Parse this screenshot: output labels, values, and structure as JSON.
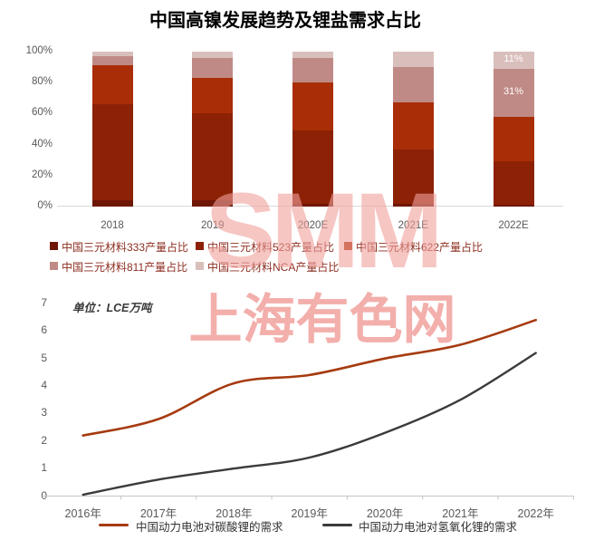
{
  "watermark": {
    "line1": "SMM",
    "line2": "上海有色网",
    "color": "#F4AAA6"
  },
  "chart_data": [
    {
      "type": "bar",
      "stacked": true,
      "title": "中国高镍发展趋势及锂盐需求占比",
      "categories": [
        "2018",
        "2019",
        "2020E",
        "2021E",
        "2022E"
      ],
      "series": [
        {
          "name": "中国三元材料333产量占比",
          "color": "#6F1706",
          "values": [
            4,
            4,
            2,
            2,
            1
          ]
        },
        {
          "name": "中国三元材料523产量占比",
          "color": "#8C2106",
          "values": [
            62,
            56,
            47,
            35,
            28
          ]
        },
        {
          "name": "中国三元材料622产量占比",
          "color": "#A92D07",
          "values": [
            25,
            23,
            31,
            30,
            29
          ]
        },
        {
          "name": "中国三元材料811产量占比",
          "color": "#BF8A85",
          "values": [
            6,
            13,
            16,
            23,
            31
          ]
        },
        {
          "name": "中国三元材料NCA产量占比",
          "color": "#D9BFBC",
          "values": [
            3,
            4,
            4,
            10,
            11
          ]
        }
      ],
      "data_labels": [
        {
          "category": "2022E",
          "series": "中国三元材料811产量占比",
          "text": "31%"
        },
        {
          "category": "2022E",
          "series": "中国三元材料NCA产量占比",
          "text": "11%"
        }
      ],
      "ylim": [
        0,
        100
      ],
      "yticks": [
        "0%",
        "20%",
        "40%",
        "60%",
        "80%",
        "100%"
      ],
      "grid": false,
      "legend_position": "bottom"
    },
    {
      "type": "line",
      "unit_note": "单位：LCE万吨",
      "x": [
        "2016年",
        "2017年",
        "2018年",
        "2019年",
        "2020年",
        "2021年",
        "2022年"
      ],
      "series": [
        {
          "name": "中国动力电池对碳酸锂的需求",
          "color": "#A63B10",
          "values": [
            2.2,
            2.8,
            4.1,
            4.4,
            5.0,
            5.5,
            6.4
          ]
        },
        {
          "name": "中国动力电池对氢氧化锂的需求",
          "color": "#3B3B3B",
          "values": [
            0.05,
            0.6,
            1.0,
            1.4,
            2.3,
            3.5,
            5.2
          ]
        }
      ],
      "ylim": [
        0,
        7
      ],
      "yticks": [
        0,
        1,
        2,
        3,
        4,
        5,
        6,
        7
      ],
      "grid": false,
      "legend_position": "bottom"
    }
  ]
}
